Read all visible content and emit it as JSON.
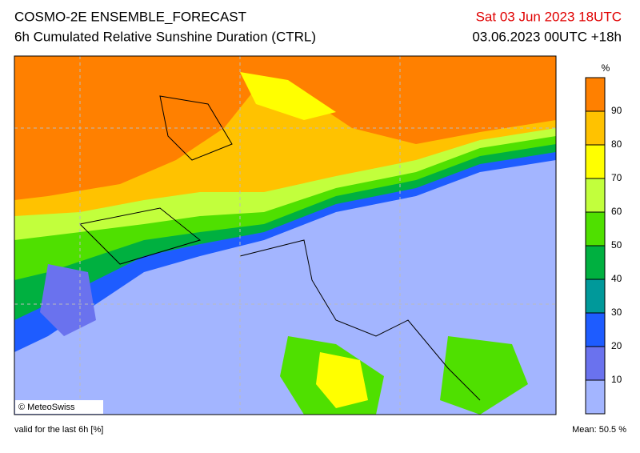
{
  "header": {
    "title": "COSMO-2E ENSEMBLE_FORECAST",
    "subtitle": "6h Cumulated Relative Sunshine Duration (CTRL)",
    "valid_date": "Sat 03 Jun 2023 18UTC",
    "run": "03.06.2023 00UTC +18h"
  },
  "map": {
    "credit": "© MeteoSwiss"
  },
  "colorbar": {
    "unit": "%",
    "lim": [
      0,
      100
    ],
    "ticks": [
      10,
      20,
      30,
      40,
      50,
      60,
      70,
      80,
      90
    ],
    "colors": [
      "#a3b5ff",
      "#6a72ee",
      "#1e5cff",
      "#00999a",
      "#00b040",
      "#4fe000",
      "#c2ff3c",
      "#ffff00",
      "#ffc200",
      "#ff8000"
    ]
  },
  "footer": {
    "validity": "valid for the last 6h [%]",
    "mean": "Mean:  50.5 %"
  }
}
